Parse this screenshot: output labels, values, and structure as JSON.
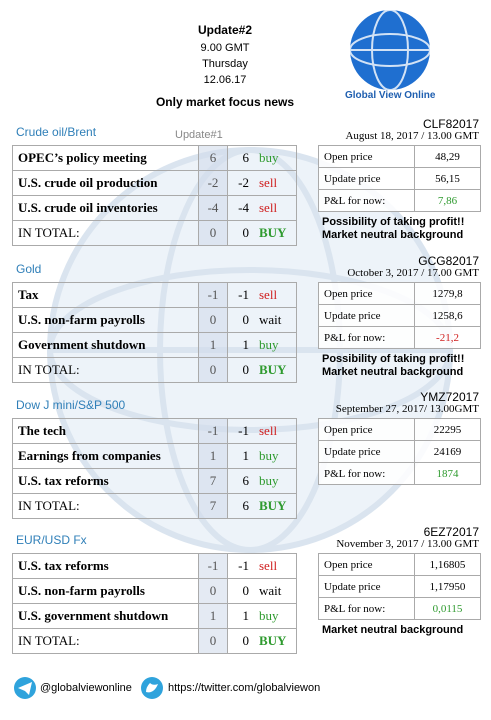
{
  "header": {
    "title": "Update#2",
    "time": "9.00 GMT",
    "day": "Thursday",
    "date": "12.06.17",
    "subtitle": "Only market focus news",
    "brand": "Global View Online"
  },
  "sections": [
    {
      "name": "Crude oil/Brent",
      "previous_label": "Update#1",
      "rows": [
        {
          "label": "OPEC’s policy meeting",
          "previous": "6",
          "current": "6",
          "signal": "buy",
          "color": "#2e9a2e"
        },
        {
          "label": "U.S. crude oil production",
          "previous": "-2",
          "current": "-2",
          "signal": "sell",
          "color": "#d02020"
        },
        {
          "label": "U.S. crude oil inventories",
          "previous": "-4",
          "current": "-4",
          "signal": "sell",
          "color": "#d02020"
        },
        {
          "label": "IN TOTAL:",
          "previous": "0",
          "current": "0",
          "signal": "BUY",
          "color": "#2e9a2e"
        }
      ],
      "ticker": "CLF82017",
      "update_time": "August 18, 2017 / 13.00 GMT",
      "prices": [
        {
          "label": "Open price",
          "value": "48,29",
          "color": "#000"
        },
        {
          "label": "Update price",
          "value": "56,15",
          "color": "#000"
        },
        {
          "label": "P&L for now:",
          "value": "7,86",
          "color": "#2e9a2e"
        }
      ],
      "notes": [
        "Possibility of taking profit!!",
        "Market neutral background"
      ]
    },
    {
      "name": "Gold",
      "rows": [
        {
          "label": "Tax",
          "previous": "-1",
          "current": "-1",
          "signal": "sell",
          "color": "#d02020"
        },
        {
          "label": "U.S. non-farm payrolls",
          "previous": "0",
          "current": "0",
          "signal": "wait",
          "color": "#000"
        },
        {
          "label": "Government shutdown",
          "previous": "1",
          "current": "1",
          "signal": "buy",
          "color": "#2e9a2e"
        },
        {
          "label": "IN TOTAL:",
          "previous": "0",
          "current": "0",
          "signal": "BUY",
          "color": "#2e9a2e"
        }
      ],
      "ticker": "GCG82017",
      "update_time": "October 3, 2017 / 17.00 GMT",
      "prices": [
        {
          "label": "Open price",
          "value": "1279,8",
          "color": "#000"
        },
        {
          "label": "Update price",
          "value": "1258,6",
          "color": "#000"
        },
        {
          "label": "P&L for now:",
          "value": "-21,2",
          "color": "#d02020"
        }
      ],
      "notes": [
        "Possibility of taking profit!!",
        "Market neutral background"
      ]
    },
    {
      "name": "Dow J mini/S&P 500",
      "rows": [
        {
          "label": "The tech",
          "previous": "-1",
          "current": "-1",
          "signal": "sell",
          "color": "#d02020"
        },
        {
          "label": "Earnings from companies",
          "previous": "1",
          "current": "1",
          "signal": "buy",
          "color": "#2e9a2e"
        },
        {
          "label": "U.S. tax reforms",
          "previous": "7",
          "current": "6",
          "signal": "buy",
          "color": "#2e9a2e"
        },
        {
          "label": "IN TOTAL:",
          "previous": "7",
          "current": "6",
          "signal": "BUY",
          "color": "#2e9a2e"
        }
      ],
      "ticker": "YMZ72017",
      "update_time": "September 27, 2017/ 13.00GMT",
      "prices": [
        {
          "label": "Open price",
          "value": "22295",
          "color": "#000"
        },
        {
          "label": "Update price",
          "value": "24169",
          "color": "#000"
        },
        {
          "label": "P&L for now:",
          "value": "1874",
          "color": "#2e9a2e"
        }
      ],
      "notes": []
    },
    {
      "name": "EUR/USD Fx",
      "rows": [
        {
          "label": "U.S. tax reforms",
          "previous": "-1",
          "current": "-1",
          "signal": "sell",
          "color": "#d02020"
        },
        {
          "label": "U.S. non-farm payrolls",
          "previous": "0",
          "current": "0",
          "signal": "wait",
          "color": "#000"
        },
        {
          "label": "U.S. government shutdown",
          "previous": "1",
          "current": "1",
          "signal": "buy",
          "color": "#2e9a2e"
        },
        {
          "label": "IN TOTAL:",
          "previous": "0",
          "current": "0",
          "signal": "BUY",
          "color": "#2e9a2e"
        }
      ],
      "ticker": "6EZ72017",
      "update_time": "November 3, 2017 / 13.00 GMT",
      "prices": [
        {
          "label": "Open price",
          "value": "1,16805",
          "color": "#000"
        },
        {
          "label": "Update price",
          "value": "1,17950",
          "color": "#000"
        },
        {
          "label": "P&L for now:",
          "value": "0,0115",
          "color": "#2e9a2e"
        }
      ],
      "notes": [
        "Market neutral background"
      ]
    }
  ],
  "footer": {
    "telegram": "@globalviewonline",
    "twitter": "https://twitter.com/globalviewon"
  }
}
